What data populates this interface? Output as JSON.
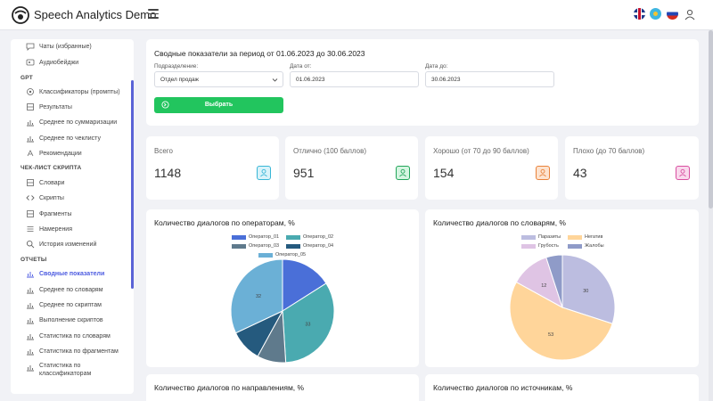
{
  "header": {
    "app_title": "Speech Analytics Demo"
  },
  "sidebar": {
    "items_top": [
      {
        "label": "Чаты (избранные)",
        "icon": "chat-icon"
      },
      {
        "label": "Аудиобейджи",
        "icon": "badge-icon"
      }
    ],
    "section_gpt": "GPT",
    "items_gpt": [
      {
        "label": "Классификаторы (промпты)",
        "icon": "classifier-icon"
      },
      {
        "label": "Результаты",
        "icon": "results-icon"
      },
      {
        "label": "Среднее по суммаризации",
        "icon": "chart-icon"
      },
      {
        "label": "Среднее по чеклисту",
        "icon": "chart-icon"
      },
      {
        "label": "Рекомендации",
        "icon": "recommend-icon"
      }
    ],
    "section_checklist": "ЧЕК-ЛИСТ СКРИПТА",
    "items_checklist": [
      {
        "label": "Словари",
        "icon": "dictionary-icon"
      },
      {
        "label": "Скрипты",
        "icon": "code-icon"
      },
      {
        "label": "Фрагменты",
        "icon": "fragment-icon"
      },
      {
        "label": "Намерения",
        "icon": "list-icon"
      },
      {
        "label": "История изменений",
        "icon": "search-icon"
      }
    ],
    "section_reports": "ОТЧЕТЫ",
    "items_reports": [
      {
        "label": "Сводные показатели",
        "icon": "chart-icon",
        "active": true
      },
      {
        "label": "Среднее по словарям",
        "icon": "chart-icon"
      },
      {
        "label": "Среднее по скриптам",
        "icon": "chart-icon"
      },
      {
        "label": "Выполнение скриптов",
        "icon": "chart-icon"
      },
      {
        "label": "Статистика по словарям",
        "icon": "chart-icon"
      },
      {
        "label": "Статистика по фрагментам",
        "icon": "chart-icon"
      },
      {
        "label": "Статистика по",
        "label2": "классификаторам",
        "icon": "chart-icon"
      }
    ]
  },
  "filter": {
    "title": "Сводные показатели за период от 01.06.2023 до 30.06.2023",
    "division_label": "Подразделение:",
    "division_value": "Отдел продаж",
    "date_from_label": "Дата от:",
    "date_from_value": "01.06.2023",
    "date_to_label": "Дата до:",
    "date_to_value": "30.06.2023",
    "select_button": "Выбрать",
    "button_color": "#22c55e"
  },
  "stats": [
    {
      "label": "Всего",
      "value": "1148",
      "icon": "user-icon",
      "color": "#38b6d6",
      "bg": "#d9f3fa"
    },
    {
      "label": "Отлично (100 баллов)",
      "value": "951",
      "icon": "user-icon",
      "color": "#22a55a",
      "bg": "#d5f5e1"
    },
    {
      "label": "Хорошо (от 70 до 90 баллов)",
      "value": "154",
      "icon": "user-icon",
      "color": "#e9823a",
      "bg": "#fde3cf"
    },
    {
      "label": "Плохо (до 70 баллов)",
      "value": "43",
      "icon": "user-icon",
      "color": "#d94fa0",
      "bg": "#f9d8ec"
    }
  ],
  "charts": {
    "operators": {
      "title": "Количество диалогов по операторам, %",
      "chart_data": {
        "type": "pie",
        "series": [
          {
            "name": "Оператор_01",
            "value": 16,
            "label": "",
            "color": "#4a6fd8"
          },
          {
            "name": "Оператор_02",
            "value": 33,
            "label": "33",
            "color": "#4aaab0"
          },
          {
            "name": "Оператор_03",
            "value": 9,
            "label": "",
            "color": "#5f7a8c"
          },
          {
            "name": "Оператор_04",
            "value": 10,
            "label": "",
            "color": "#255a7e"
          },
          {
            "name": "Оператор_05",
            "value": 32,
            "label": "32",
            "color": "#6bb0d6"
          }
        ]
      }
    },
    "dictionaries": {
      "title": "Количество диалогов по словарям, %",
      "chart_data": {
        "type": "pie",
        "series": [
          {
            "name": "Паразиты",
            "value": 30,
            "label": "30",
            "color": "#bcbde0"
          },
          {
            "name": "Негатив",
            "value": 53,
            "label": "53",
            "color": "#ffd59a"
          },
          {
            "name": "Грубость",
            "value": 12,
            "label": "12",
            "color": "#dfc4e4"
          },
          {
            "name": "Жалобы",
            "value": 5,
            "label": "",
            "color": "#8f9bc8"
          }
        ]
      }
    },
    "directions_title": "Количество диалогов по направлениям, %",
    "sources_title": "Количество диалогов по источникам, %"
  }
}
